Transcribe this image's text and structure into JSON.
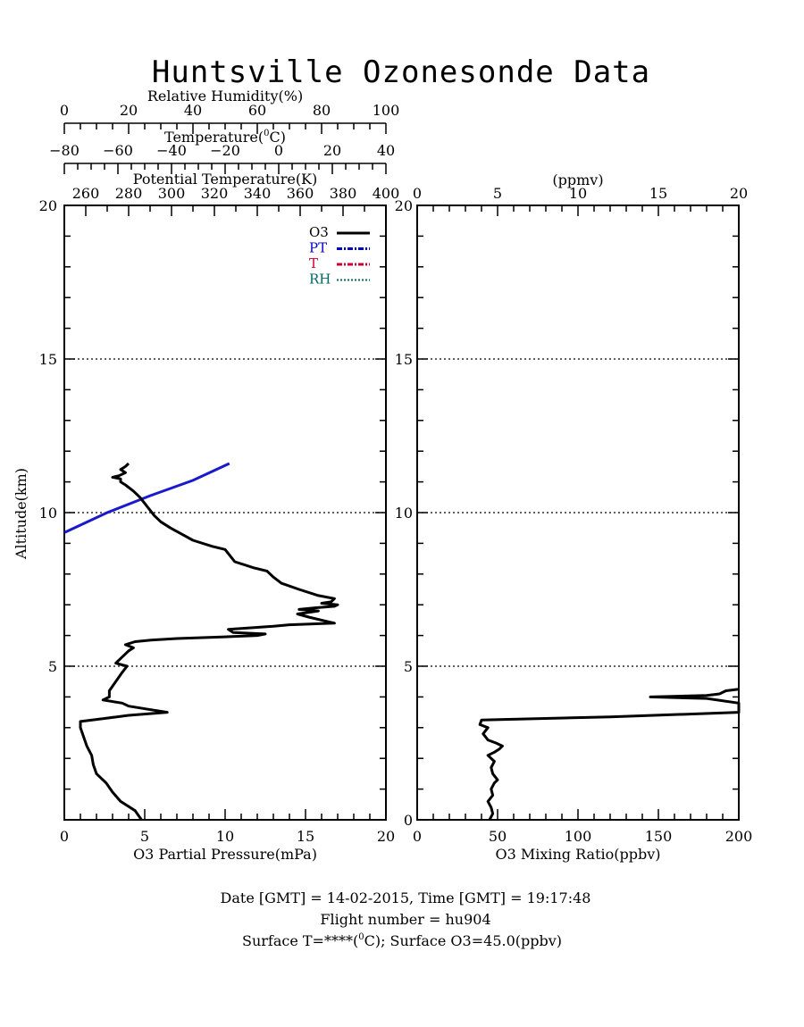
{
  "title": "Huntsville Ozonesonde Data",
  "left_panel": {
    "top_axes": [
      {
        "label": "Relative Humidity(%)",
        "ticks": [
          "0",
          "20",
          "40",
          "60",
          "80",
          "100"
        ]
      },
      {
        "label_pre": "Temperature(",
        "label_sup": "0",
        "label_post": "C)",
        "ticks": [
          "-80",
          "-60",
          "-40",
          "-20",
          "0",
          "20",
          "40"
        ]
      },
      {
        "label": "Potential Temperature(K)",
        "ticks": [
          "260",
          "280",
          "300",
          "320",
          "340",
          "360",
          "380",
          "400"
        ]
      }
    ],
    "ylabel": "Altitude(km)",
    "xlabel": "O3 Partial Pressure(mPa)",
    "x_ticks": [
      "0",
      "5",
      "10",
      "15",
      "20"
    ],
    "y_ticks": [
      "5",
      "10",
      "15",
      "20"
    ],
    "legend": [
      {
        "label": "O3",
        "color": "#000000"
      },
      {
        "label": "PT",
        "color": "#0000cc"
      },
      {
        "label": "T",
        "color": "#cc0033"
      },
      {
        "label": "RH",
        "color": "#006666"
      }
    ]
  },
  "right_panel": {
    "top_label": "(ppmv)",
    "top_ticks": [
      "0",
      "5",
      "10",
      "15",
      "20"
    ],
    "xlabel": "O3 Mixing Ratio(ppbv)",
    "x_ticks": [
      "0",
      "50",
      "100",
      "150",
      "200"
    ],
    "y_ticks": [
      "0",
      "5",
      "10",
      "15",
      "20"
    ]
  },
  "footer": {
    "line1": "Date [GMT] = 14-02-2015,  Time [GMT] = 19:17:48",
    "line2": "Flight number = hu904",
    "line3_pre": "Surface T=****(",
    "line3_sup": "0",
    "line3_post": "C); Surface O3=45.0(ppbv)"
  },
  "chart_data": [
    {
      "type": "line",
      "title": "Huntsville Ozonesonde Data",
      "xlabel": "O3 Partial Pressure(mPa)",
      "ylabel": "Altitude(km)",
      "xlim": [
        0,
        20
      ],
      "ylim": [
        0,
        20
      ],
      "grid": "dotted horizontal lines at 5, 10, 15 km",
      "legend_position": "top-right",
      "series": [
        {
          "name": "O3",
          "x_units": "mPa",
          "points": [
            [
              4.8,
              0.0
            ],
            [
              4.4,
              0.3
            ],
            [
              3.5,
              0.6
            ],
            [
              3.0,
              0.9
            ],
            [
              2.6,
              1.2
            ],
            [
              2.0,
              1.5
            ],
            [
              1.8,
              1.8
            ],
            [
              1.7,
              2.1
            ],
            [
              1.4,
              2.4
            ],
            [
              1.2,
              2.7
            ],
            [
              1.0,
              3.0
            ],
            [
              1.0,
              3.2
            ],
            [
              2.5,
              3.3
            ],
            [
              4.0,
              3.4
            ],
            [
              6.4,
              3.5
            ],
            [
              5.2,
              3.6
            ],
            [
              4.0,
              3.7
            ],
            [
              3.6,
              3.8
            ],
            [
              2.4,
              3.9
            ],
            [
              2.8,
              4.0
            ],
            [
              2.8,
              4.2
            ],
            [
              3.2,
              4.5
            ],
            [
              3.6,
              4.8
            ],
            [
              3.9,
              5.0
            ],
            [
              3.2,
              5.1
            ],
            [
              3.6,
              5.3
            ],
            [
              4.0,
              5.5
            ],
            [
              4.3,
              5.6
            ],
            [
              3.8,
              5.7
            ],
            [
              4.4,
              5.8
            ],
            [
              5.4,
              5.85
            ],
            [
              7.0,
              5.9
            ],
            [
              9.8,
              5.95
            ],
            [
              12.0,
              6.0
            ],
            [
              12.5,
              6.05
            ],
            [
              10.5,
              6.1
            ],
            [
              10.2,
              6.2
            ],
            [
              13.0,
              6.3
            ],
            [
              14.0,
              6.35
            ],
            [
              16.8,
              6.4
            ],
            [
              16.0,
              6.5
            ],
            [
              15.2,
              6.6
            ],
            [
              14.5,
              6.7
            ],
            [
              15.8,
              6.8
            ],
            [
              14.6,
              6.85
            ],
            [
              15.6,
              6.9
            ],
            [
              16.8,
              6.95
            ],
            [
              17.0,
              7.0
            ],
            [
              16.0,
              7.05
            ],
            [
              16.6,
              7.1
            ],
            [
              16.8,
              7.2
            ],
            [
              15.8,
              7.3
            ],
            [
              14.6,
              7.5
            ],
            [
              13.5,
              7.7
            ],
            [
              13.0,
              7.9
            ],
            [
              12.6,
              8.1
            ],
            [
              11.8,
              8.2
            ],
            [
              10.6,
              8.4
            ],
            [
              10.3,
              8.6
            ],
            [
              10.0,
              8.8
            ],
            [
              9.2,
              8.9
            ],
            [
              8.0,
              9.1
            ],
            [
              7.3,
              9.3
            ],
            [
              6.6,
              9.5
            ],
            [
              6.0,
              9.7
            ],
            [
              5.6,
              9.9
            ],
            [
              5.3,
              10.1
            ],
            [
              5.0,
              10.3
            ],
            [
              4.7,
              10.5
            ],
            [
              4.3,
              10.7
            ],
            [
              3.8,
              10.9
            ],
            [
              3.5,
              11.0
            ],
            [
              3.5,
              11.1
            ],
            [
              3.0,
              11.15
            ],
            [
              3.4,
              11.2
            ],
            [
              3.8,
              11.3
            ],
            [
              3.5,
              11.4
            ],
            [
              3.8,
              11.5
            ],
            [
              4.0,
              11.6
            ]
          ]
        },
        {
          "name": "PT",
          "x_units": "K",
          "points": [
            [
              250,
              9.35
            ],
            [
              270,
              10.0
            ],
            [
              290,
              10.55
            ],
            [
              310,
              11.05
            ],
            [
              327,
              11.6
            ]
          ]
        }
      ]
    },
    {
      "type": "line",
      "xlabel": "O3 Mixing Ratio(ppbv)",
      "xlim": [
        0,
        200
      ],
      "ylim": [
        0,
        20
      ],
      "series": [
        {
          "name": "O3",
          "x_units": "ppbv",
          "points": [
            [
              45,
              0.0
            ],
            [
              47,
              0.2
            ],
            [
              46,
              0.4
            ],
            [
              44,
              0.6
            ],
            [
              47,
              0.8
            ],
            [
              46,
              1.0
            ],
            [
              48,
              1.2
            ],
            [
              50,
              1.3
            ],
            [
              47,
              1.5
            ],
            [
              46,
              1.7
            ],
            [
              48,
              1.9
            ],
            [
              44,
              2.1
            ],
            [
              48,
              2.2
            ],
            [
              51,
              2.3
            ],
            [
              53,
              2.4
            ],
            [
              49,
              2.5
            ],
            [
              44,
              2.6
            ],
            [
              41,
              2.8
            ],
            [
              44,
              3.0
            ],
            [
              39,
              3.1
            ],
            [
              40,
              3.25
            ],
            [
              120,
              3.35
            ],
            [
              200,
              3.5
            ],
            [
              200,
              3.8
            ],
            [
              180,
              3.95
            ],
            [
              145,
              4.0
            ],
            [
              180,
              4.05
            ],
            [
              188,
              4.1
            ],
            [
              192,
              4.2
            ],
            [
              200,
              4.25
            ]
          ]
        }
      ]
    }
  ]
}
